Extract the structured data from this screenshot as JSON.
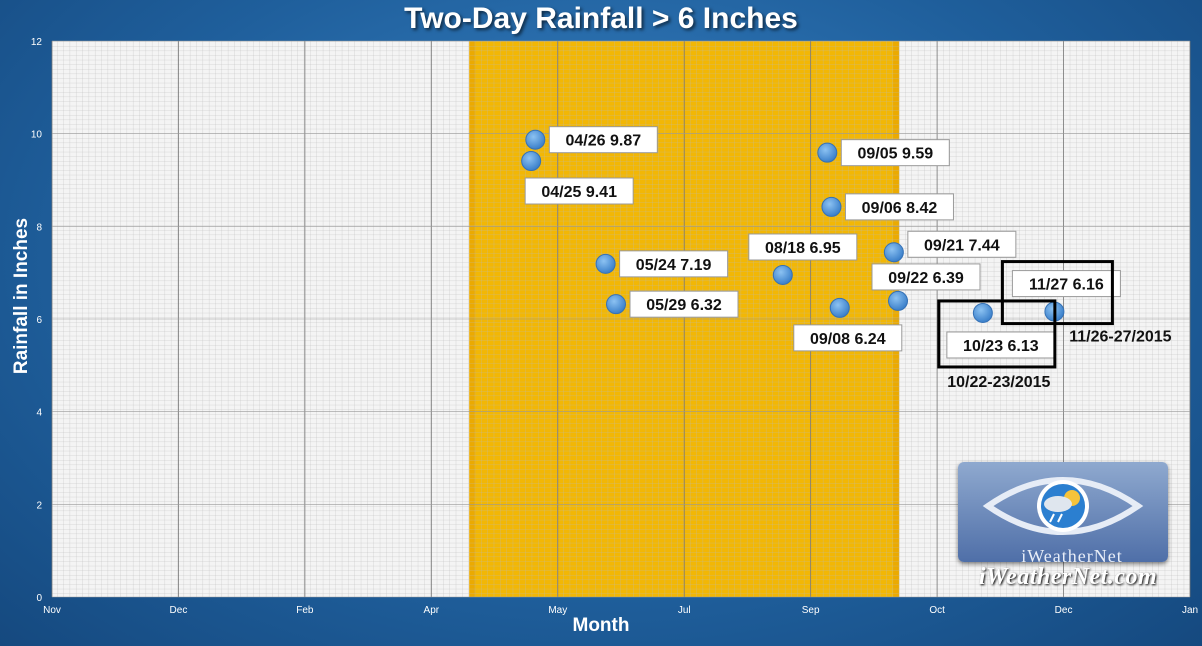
{
  "chart_data": {
    "type": "scatter",
    "title": "Two-Day Rainfall > 6 Inches",
    "xlabel": "Month",
    "ylabel": "Rainfall in Inches",
    "ylim": [
      0,
      12
    ],
    "yticks": [
      "0",
      "2",
      "4",
      "6",
      "8",
      "10",
      "12"
    ],
    "xticks": [
      "Nov",
      "Dec",
      "Feb",
      "Apr",
      "May",
      "Jul",
      "Sep",
      "Oct",
      "Dec",
      "Jan"
    ],
    "grid": true,
    "highlight_band": {
      "from": "Apr",
      "to": "Sep",
      "color": "#f2b705"
    },
    "points": [
      {
        "label": "04/26 9.87",
        "y": 9.87
      },
      {
        "label": "04/25 9.41",
        "y": 9.41
      },
      {
        "label": "05/24 7.19",
        "y": 7.19
      },
      {
        "label": "05/29 6.32",
        "y": 6.32
      },
      {
        "label": "08/18 6.95",
        "y": 6.95
      },
      {
        "label": "09/05 9.59",
        "y": 9.59
      },
      {
        "label": "09/06 8.42",
        "y": 8.42
      },
      {
        "label": "09/21 7.44",
        "y": 7.44
      },
      {
        "label": "09/22 6.39",
        "y": 6.39
      },
      {
        "label": "09/08 6.24",
        "y": 6.24
      },
      {
        "label": "10/23 6.13",
        "y": 6.13
      },
      {
        "label": "11/27 6.16",
        "y": 6.16
      }
    ],
    "annotations": [
      "10/22-23/2015",
      "11/26-27/2015"
    ],
    "colors": {
      "point": "#4f95dc",
      "band": "#f2b705",
      "background": "#1f5f9c"
    }
  },
  "logo": {
    "inner": "iWeatherNet",
    "text": "iWeatherNet.com"
  }
}
